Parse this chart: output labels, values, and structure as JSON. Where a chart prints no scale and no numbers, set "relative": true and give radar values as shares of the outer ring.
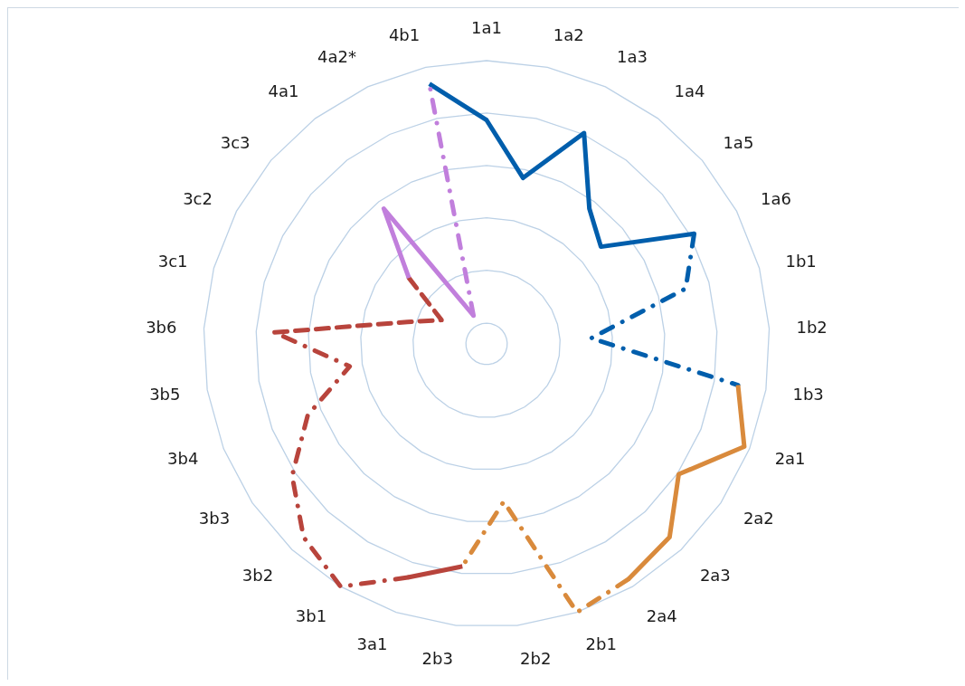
{
  "chart_data": {
    "type": "radar",
    "relative": true,
    "grid": true,
    "categories": [
      "1a1",
      "1a2",
      "1a3",
      "1a4",
      "1a5",
      "1a6",
      "1b1",
      "1b2",
      "1b3",
      "2a1",
      "2a2",
      "2a3",
      "2a4",
      "2b1",
      "2b2",
      "2b3",
      "3a1",
      "3b1",
      "3b2",
      "3b3",
      "3b4",
      "3b5",
      "3b6",
      "3c1",
      "3c2",
      "3c3",
      "4a1",
      "4a2*",
      "4b1"
    ],
    "series": [
      {
        "color": "#005eac",
        "line_style": "solid",
        "values": [
          0.79,
          0.6,
          0.82,
          0.6,
          0.53,
          0.83,
          null,
          null,
          null,
          null,
          null,
          null,
          null,
          null,
          null,
          null,
          null,
          null,
          null,
          null,
          null,
          null,
          null,
          null,
          null,
          null,
          null,
          null,
          0.94
        ]
      },
      {
        "color": "#005eac",
        "line_style": "dashdot",
        "values": [
          null,
          null,
          null,
          null,
          null,
          0.83,
          0.73,
          0.37,
          0.9,
          null,
          null,
          null,
          null,
          null,
          null,
          null,
          null,
          null,
          null,
          null,
          null,
          null,
          null,
          null,
          null,
          null,
          null,
          null,
          null
        ]
      },
      {
        "color": "#d98a3c",
        "line_style": "solid",
        "values": [
          null,
          null,
          null,
          null,
          null,
          null,
          null,
          null,
          0.9,
          0.98,
          0.82,
          0.94,
          0.97,
          null,
          null,
          null,
          null,
          null,
          null,
          null,
          null,
          null,
          null,
          null,
          null,
          null,
          null,
          null,
          null
        ]
      },
      {
        "color": "#d98a3c",
        "line_style": "dashdot",
        "values": [
          null,
          null,
          null,
          null,
          null,
          null,
          null,
          null,
          null,
          null,
          null,
          null,
          0.97,
          1.0,
          0.56,
          0.79,
          null,
          null,
          null,
          null,
          null,
          null,
          null,
          null,
          null,
          null,
          null,
          null,
          null
        ]
      },
      {
        "color": "#b8443c",
        "line_style": "solid",
        "values": [
          null,
          null,
          null,
          null,
          null,
          null,
          null,
          null,
          null,
          null,
          null,
          null,
          null,
          null,
          null,
          0.79,
          0.87,
          null,
          null,
          null,
          null,
          null,
          null,
          null,
          null,
          null,
          null,
          null,
          null
        ]
      },
      {
        "color": "#b8443c",
        "line_style": "dashdot",
        "values": [
          null,
          null,
          null,
          null,
          null,
          null,
          null,
          null,
          null,
          null,
          null,
          null,
          null,
          null,
          null,
          null,
          0.87,
          1.0,
          0.94,
          0.83,
          0.68,
          0.49,
          0.75,
          null,
          null,
          null,
          null,
          null,
          null
        ]
      },
      {
        "color": "#b8443c",
        "line_style": "dashed",
        "values": [
          null,
          null,
          null,
          null,
          null,
          null,
          null,
          null,
          null,
          null,
          null,
          null,
          null,
          null,
          null,
          null,
          null,
          null,
          null,
          null,
          null,
          null,
          0.75,
          0.29,
          0.18,
          0.36,
          null,
          null,
          null
        ]
      },
      {
        "color": "#c17fdc",
        "line_style": "solid",
        "values": [
          null,
          null,
          null,
          null,
          null,
          null,
          null,
          null,
          null,
          null,
          null,
          null,
          null,
          null,
          null,
          null,
          null,
          null,
          null,
          null,
          null,
          null,
          null,
          null,
          null,
          0.36,
          0.6,
          0.11,
          null
        ]
      },
      {
        "color": "#c17fdc",
        "line_style": "dashdot",
        "values": [
          null,
          null,
          null,
          null,
          null,
          null,
          null,
          null,
          null,
          null,
          null,
          null,
          null,
          null,
          null,
          null,
          null,
          null,
          null,
          null,
          null,
          null,
          null,
          null,
          null,
          null,
          null,
          0.11,
          0.94
        ]
      }
    ]
  }
}
